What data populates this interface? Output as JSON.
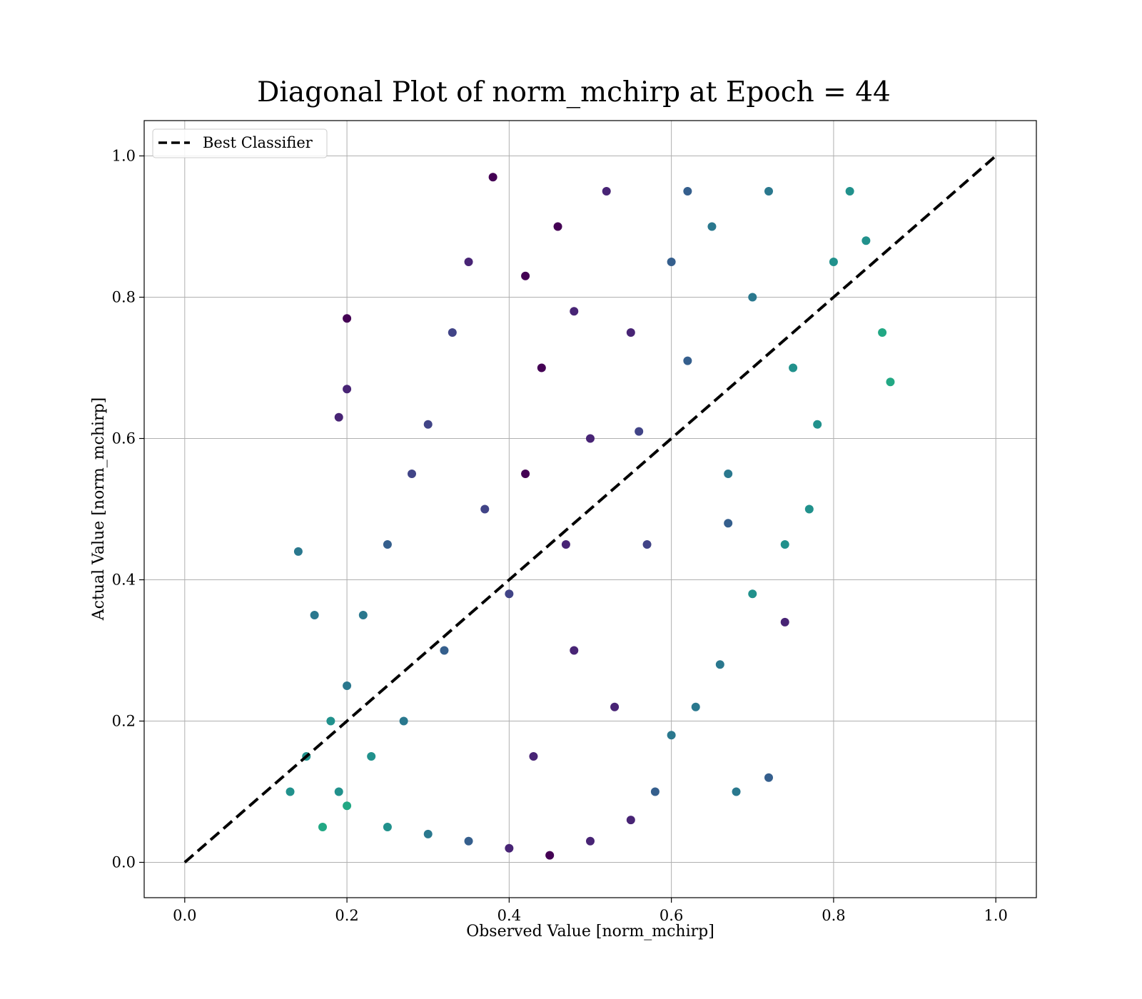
{
  "chart_data": {
    "type": "scatter",
    "title": "Diagonal Plot of norm_mchirp at Epoch = 44",
    "xlabel": "Observed Value [norm_mchirp]",
    "ylabel": "Actual Value [norm_mchirp]",
    "xlim": [
      -0.05,
      1.05
    ],
    "ylim": [
      -0.05,
      1.05
    ],
    "xticks": [
      0.0,
      0.2,
      0.4,
      0.6,
      0.8,
      1.0
    ],
    "yticks": [
      0.0,
      0.2,
      0.4,
      0.6,
      0.8,
      1.0
    ],
    "xtick_labels": [
      "0.0",
      "0.2",
      "0.4",
      "0.6",
      "0.8",
      "1.0"
    ],
    "ytick_labels": [
      "0.0",
      "0.2",
      "0.4",
      "0.6",
      "0.8",
      "1.0"
    ],
    "grid": true,
    "legend": {
      "position": "top-left",
      "entries": [
        "Best Classifier"
      ]
    },
    "reference_line": {
      "name": "Best Classifier",
      "x": [
        0.0,
        1.0
      ],
      "y": [
        0.0,
        1.0
      ],
      "color": "#000000",
      "style": "dashed"
    },
    "scatter_colormap": "viridis",
    "colors": [
      "#440154",
      "#482475",
      "#414487",
      "#355f8d",
      "#2a788e",
      "#21918c",
      "#22a884",
      "#44bf70",
      "#7ad151",
      "#bddf26"
    ],
    "scatter_points": [
      [
        0.4,
        0.38,
        0.2
      ],
      [
        0.42,
        0.55,
        0.05
      ],
      [
        0.44,
        0.7,
        0.03
      ],
      [
        0.46,
        0.9,
        0.02
      ],
      [
        0.43,
        0.15,
        0.08
      ],
      [
        0.48,
        0.3,
        0.06
      ],
      [
        0.5,
        0.6,
        0.1
      ],
      [
        0.55,
        0.75,
        0.15
      ],
      [
        0.6,
        0.85,
        0.35
      ],
      [
        0.65,
        0.9,
        0.4
      ],
      [
        0.7,
        0.8,
        0.45
      ],
      [
        0.75,
        0.7,
        0.5
      ],
      [
        0.78,
        0.62,
        0.55
      ],
      [
        0.8,
        0.85,
        0.52
      ],
      [
        0.84,
        0.88,
        0.6
      ],
      [
        0.86,
        0.75,
        0.65
      ],
      [
        0.87,
        0.68,
        0.62
      ],
      [
        0.82,
        0.95,
        0.5
      ],
      [
        0.72,
        0.95,
        0.42
      ],
      [
        0.62,
        0.95,
        0.3
      ],
      [
        0.52,
        0.95,
        0.1
      ],
      [
        0.38,
        0.97,
        0.05
      ],
      [
        0.35,
        0.85,
        0.15
      ],
      [
        0.33,
        0.75,
        0.18
      ],
      [
        0.3,
        0.62,
        0.22
      ],
      [
        0.28,
        0.55,
        0.25
      ],
      [
        0.25,
        0.45,
        0.3
      ],
      [
        0.22,
        0.35,
        0.4
      ],
      [
        0.2,
        0.25,
        0.45
      ],
      [
        0.18,
        0.2,
        0.5
      ],
      [
        0.15,
        0.15,
        0.55
      ],
      [
        0.13,
        0.1,
        0.6
      ],
      [
        0.17,
        0.05,
        0.7
      ],
      [
        0.2,
        0.08,
        0.62
      ],
      [
        0.25,
        0.05,
        0.5
      ],
      [
        0.3,
        0.04,
        0.4
      ],
      [
        0.35,
        0.03,
        0.3
      ],
      [
        0.4,
        0.02,
        0.1
      ],
      [
        0.45,
        0.01,
        0.05
      ],
      [
        0.5,
        0.03,
        0.08
      ],
      [
        0.55,
        0.06,
        0.15
      ],
      [
        0.58,
        0.1,
        0.3
      ],
      [
        0.6,
        0.18,
        0.4
      ],
      [
        0.63,
        0.22,
        0.45
      ],
      [
        0.66,
        0.28,
        0.48
      ],
      [
        0.7,
        0.38,
        0.5
      ],
      [
        0.74,
        0.45,
        0.52
      ],
      [
        0.77,
        0.5,
        0.55
      ],
      [
        0.67,
        0.55,
        0.45
      ],
      [
        0.57,
        0.45,
        0.25
      ],
      [
        0.47,
        0.45,
        0.08
      ],
      [
        0.37,
        0.5,
        0.2
      ],
      [
        0.32,
        0.3,
        0.35
      ],
      [
        0.27,
        0.2,
        0.45
      ],
      [
        0.23,
        0.15,
        0.5
      ],
      [
        0.19,
        0.1,
        0.58
      ],
      [
        0.68,
        0.1,
        0.4
      ],
      [
        0.72,
        0.12,
        0.35
      ],
      [
        0.74,
        0.34,
        0.1
      ],
      [
        0.2,
        0.77,
        0.05
      ],
      [
        0.2,
        0.67,
        0.1
      ],
      [
        0.19,
        0.63,
        0.08
      ],
      [
        0.14,
        0.44,
        0.4
      ],
      [
        0.16,
        0.35,
        0.45
      ],
      [
        0.56,
        0.61,
        0.2
      ],
      [
        0.62,
        0.71,
        0.33
      ],
      [
        0.67,
        0.48,
        0.38
      ],
      [
        0.53,
        0.22,
        0.12
      ],
      [
        0.42,
        0.83,
        0.04
      ],
      [
        0.48,
        0.78,
        0.06
      ]
    ]
  }
}
